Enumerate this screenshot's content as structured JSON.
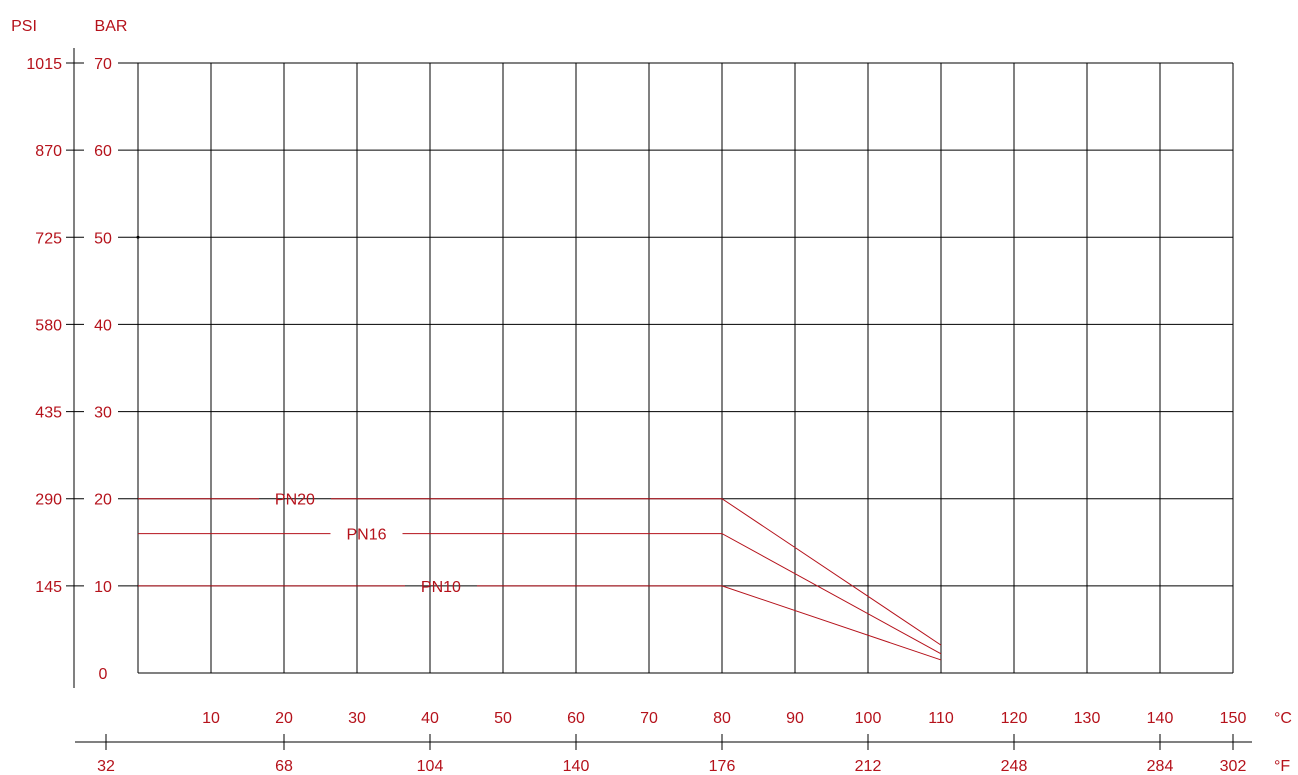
{
  "chart_data": {
    "type": "line",
    "units": {
      "psi": "PSI",
      "bar": "BAR",
      "celsius": "°C",
      "fahrenheit": "°F"
    },
    "xlim": [
      0,
      150
    ],
    "ylim": [
      0,
      70
    ],
    "bar_ticks": [
      "0",
      "10",
      "20",
      "30",
      "40",
      "50",
      "60",
      "70"
    ],
    "psi_ticks": [
      "145",
      "290",
      "435",
      "580",
      "725",
      "870",
      "1015"
    ],
    "celsius_ticks": [
      "10",
      "20",
      "30",
      "40",
      "50",
      "60",
      "70",
      "80",
      "90",
      "100",
      "110",
      "120",
      "130",
      "140",
      "150"
    ],
    "fahrenheit_ticks": [
      "32",
      "68",
      "104",
      "140",
      "176",
      "212",
      "248",
      "284",
      "302"
    ],
    "grid": true,
    "series": [
      {
        "name": "PN20",
        "points": [
          [
            0,
            20
          ],
          [
            80,
            20
          ],
          [
            110,
            3.2
          ]
        ]
      },
      {
        "name": "PN16",
        "points": [
          [
            0,
            16
          ],
          [
            80,
            16
          ],
          [
            110,
            2.2
          ]
        ]
      },
      {
        "name": "PN10",
        "points": [
          [
            0,
            10
          ],
          [
            80,
            10
          ],
          [
            110,
            1.5
          ]
        ]
      }
    ],
    "colors": {
      "accent": "#b5121b",
      "grid": "#000000"
    }
  }
}
